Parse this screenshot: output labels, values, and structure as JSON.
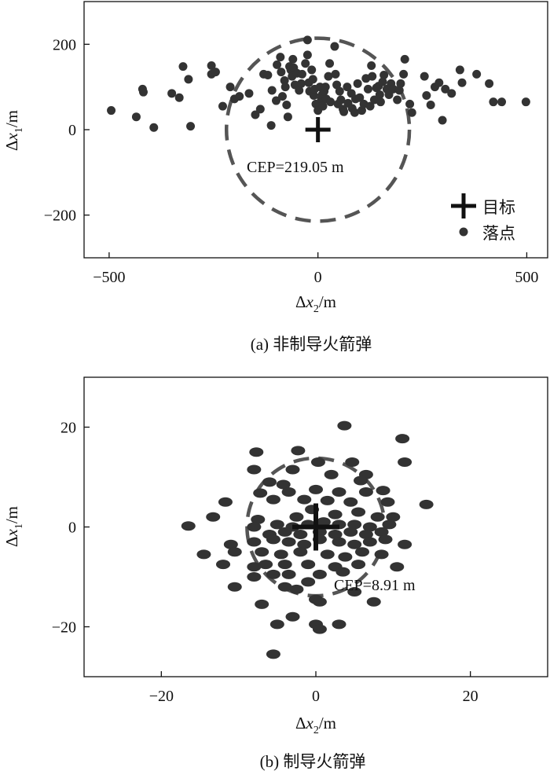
{
  "chart_data": [
    {
      "type": "scatter",
      "caption": "(a) 非制导火箭弹",
      "xlim": [
        -560,
        550
      ],
      "ylim": [
        -300,
        300
      ],
      "xticks": [
        -500,
        0,
        500
      ],
      "xtick_labels": [
        "−500",
        "0",
        "500"
      ],
      "yticks": [
        -200,
        0,
        200
      ],
      "ytick_labels": [
        "−200",
        "0",
        "200"
      ],
      "xlabel": {
        "delta": "Δ",
        "var": "x",
        "sub": "2",
        "unit": "/m"
      },
      "ylabel": {
        "delta": "Δ",
        "var": "x",
        "sub": "1",
        "unit": "/m"
      },
      "cep_label": "CEP=219.05 m",
      "cep_radius": 219.05,
      "target": [
        0,
        0
      ],
      "legend": {
        "position": "bottom-right",
        "target": "目标",
        "points": "落点"
      },
      "grid": false,
      "points": [
        [
          -495,
          45
        ],
        [
          -435,
          30
        ],
        [
          -420,
          95
        ],
        [
          -418,
          88
        ],
        [
          -393,
          5
        ],
        [
          -350,
          85
        ],
        [
          -332,
          75
        ],
        [
          -323,
          148
        ],
        [
          -310,
          118
        ],
        [
          -305,
          8
        ],
        [
          -255,
          150
        ],
        [
          -255,
          130
        ],
        [
          -245,
          135
        ],
        [
          -228,
          55
        ],
        [
          -210,
          100
        ],
        [
          -200,
          72
        ],
        [
          -188,
          78
        ],
        [
          -165,
          85
        ],
        [
          -150,
          35
        ],
        [
          -138,
          48
        ],
        [
          -130,
          130
        ],
        [
          -120,
          128
        ],
        [
          -112,
          10
        ],
        [
          -110,
          92
        ],
        [
          -100,
          68
        ],
        [
          -98,
          152
        ],
        [
          -90,
          170
        ],
        [
          -88,
          135
        ],
        [
          -85,
          78
        ],
        [
          -80,
          115
        ],
        [
          -78,
          100
        ],
        [
          -75,
          58
        ],
        [
          -72,
          30
        ],
        [
          -68,
          148
        ],
        [
          -65,
          140
        ],
        [
          -62,
          125
        ],
        [
          -60,
          165
        ],
        [
          -58,
          145
        ],
        [
          -55,
          105
        ],
        [
          -50,
          132
        ],
        [
          -45,
          92
        ],
        [
          -40,
          108
        ],
        [
          -38,
          130
        ],
        [
          -30,
          155
        ],
        [
          -25,
          175
        ],
        [
          -22,
          110
        ],
        [
          -20,
          90
        ],
        [
          -15,
          140
        ],
        [
          -12,
          118
        ],
        [
          -10,
          80
        ],
        [
          -8,
          95
        ],
        [
          -25,
          210
        ],
        [
          -5,
          60
        ],
        [
          0,
          45
        ],
        [
          5,
          100
        ],
        [
          8,
          72
        ],
        [
          10,
          82
        ],
        [
          12,
          55
        ],
        [
          15,
          90
        ],
        [
          18,
          100
        ],
        [
          20,
          72
        ],
        [
          25,
          125
        ],
        [
          28,
          155
        ],
        [
          30,
          65
        ],
        [
          40,
          195
        ],
        [
          42,
          130
        ],
        [
          45,
          105
        ],
        [
          48,
          60
        ],
        [
          52,
          90
        ],
        [
          55,
          70
        ],
        [
          60,
          48
        ],
        [
          62,
          42
        ],
        [
          70,
          100
        ],
        [
          72,
          62
        ],
        [
          80,
          85
        ],
        [
          82,
          50
        ],
        [
          88,
          40
        ],
        [
          90,
          72
        ],
        [
          95,
          108
        ],
        [
          100,
          75
        ],
        [
          105,
          45
        ],
        [
          110,
          60
        ],
        [
          115,
          120
        ],
        [
          120,
          95
        ],
        [
          125,
          55
        ],
        [
          128,
          150
        ],
        [
          130,
          125
        ],
        [
          135,
          70
        ],
        [
          140,
          98
        ],
        [
          145,
          102
        ],
        [
          148,
          82
        ],
        [
          150,
          65
        ],
        [
          155,
          112
        ],
        [
          158,
          128
        ],
        [
          165,
          95
        ],
        [
          170,
          82
        ],
        [
          175,
          108
        ],
        [
          180,
          95
        ],
        [
          190,
          70
        ],
        [
          195,
          92
        ],
        [
          198,
          108
        ],
        [
          205,
          130
        ],
        [
          208,
          165
        ],
        [
          220,
          60
        ],
        [
          225,
          40
        ],
        [
          255,
          125
        ],
        [
          260,
          80
        ],
        [
          270,
          58
        ],
        [
          280,
          100
        ],
        [
          290,
          110
        ],
        [
          298,
          22
        ],
        [
          305,
          95
        ],
        [
          320,
          85
        ],
        [
          340,
          140
        ],
        [
          345,
          110
        ],
        [
          380,
          130
        ],
        [
          410,
          108
        ],
        [
          420,
          65
        ],
        [
          440,
          65
        ],
        [
          498,
          65
        ]
      ]
    },
    {
      "type": "scatter",
      "caption": "(b) 制导火箭弹",
      "xlim": [
        -30,
        30
      ],
      "ylim": [
        -30,
        30
      ],
      "xticks": [
        -20,
        0,
        20
      ],
      "xtick_labels": [
        "−20",
        "0",
        "20"
      ],
      "yticks": [
        -20,
        0,
        20
      ],
      "ytick_labels": [
        "−20",
        "0",
        "20"
      ],
      "xlabel": {
        "delta": "Δ",
        "var": "x",
        "sub": "2",
        "unit": "/m"
      },
      "ylabel": {
        "delta": "Δ",
        "var": "x",
        "sub": "1",
        "unit": "/m"
      },
      "cep_label": "CEP=8.91 m",
      "cep_radius": 8.91,
      "target": [
        0,
        0
      ],
      "grid": false,
      "points": [
        [
          3.7,
          20.3
        ],
        [
          11.2,
          17.7
        ],
        [
          -2.3,
          15.3
        ],
        [
          -7.7,
          15.0
        ],
        [
          0.3,
          13.0
        ],
        [
          4.7,
          13.0
        ],
        [
          11.5,
          13.0
        ],
        [
          -8.0,
          11.5
        ],
        [
          -3.0,
          11.5
        ],
        [
          2.0,
          10.5
        ],
        [
          6.5,
          10.5
        ],
        [
          -6.0,
          9.0
        ],
        [
          -4.2,
          8.5
        ],
        [
          5.8,
          9.3
        ],
        [
          -7.2,
          6.8
        ],
        [
          -3.5,
          7.0
        ],
        [
          0.0,
          7.5
        ],
        [
          3.0,
          7.0
        ],
        [
          6.5,
          7.0
        ],
        [
          8.7,
          7.3
        ],
        [
          -11.7,
          5.0
        ],
        [
          -5.5,
          5.5
        ],
        [
          -1.5,
          5.5
        ],
        [
          1.5,
          5.3
        ],
        [
          4.5,
          5.0
        ],
        [
          9.3,
          5.0
        ],
        [
          14.3,
          4.5
        ],
        [
          -13.3,
          2.0
        ],
        [
          -7.5,
          1.5
        ],
        [
          -2.5,
          2.0
        ],
        [
          -0.5,
          3.5
        ],
        [
          2.5,
          2.5
        ],
        [
          5.5,
          3.0
        ],
        [
          8.0,
          2.0
        ],
        [
          10.0,
          2.0
        ],
        [
          -16.5,
          0.2
        ],
        [
          -8.0,
          0.0
        ],
        [
          -5.0,
          0.5
        ],
        [
          -3.0,
          0.0
        ],
        [
          -1.0,
          0.5
        ],
        [
          1.0,
          1.0
        ],
        [
          3.0,
          0.5
        ],
        [
          5.0,
          0.5
        ],
        [
          7.0,
          0.0
        ],
        [
          9.5,
          0.5
        ],
        [
          -6.0,
          -1.5
        ],
        [
          -4.0,
          -1.0
        ],
        [
          -2.0,
          -1.5
        ],
        [
          0.5,
          -1.0
        ],
        [
          2.5,
          -1.5
        ],
        [
          4.5,
          -1.0
        ],
        [
          6.5,
          -1.5
        ],
        [
          8.5,
          -1.0
        ],
        [
          -11.0,
          -3.5
        ],
        [
          -8.0,
          -3.0
        ],
        [
          -5.5,
          -2.5
        ],
        [
          -3.5,
          -3.0
        ],
        [
          -1.5,
          -3.5
        ],
        [
          0.5,
          -2.5
        ],
        [
          3.0,
          -3.0
        ],
        [
          5.0,
          -3.5
        ],
        [
          7.0,
          -3.0
        ],
        [
          9.0,
          -2.5
        ],
        [
          11.5,
          -3.5
        ],
        [
          -14.5,
          -5.5
        ],
        [
          -10.5,
          -5.0
        ],
        [
          -7.0,
          -5.0
        ],
        [
          -4.5,
          -5.5
        ],
        [
          -2.0,
          -5.0
        ],
        [
          1.5,
          -5.5
        ],
        [
          3.8,
          -6.0
        ],
        [
          6.0,
          -5.0
        ],
        [
          8.5,
          -5.5
        ],
        [
          -12.0,
          -7.5
        ],
        [
          -8.0,
          -8.0
        ],
        [
          -6.5,
          -7.5
        ],
        [
          -4.0,
          -7.5
        ],
        [
          -1.0,
          -7.5
        ],
        [
          2.5,
          -8.0
        ],
        [
          5.5,
          -7.5
        ],
        [
          10.5,
          -8.0
        ],
        [
          -5.5,
          -9.5
        ],
        [
          -3.5,
          -9.5
        ],
        [
          0.5,
          -9.5
        ],
        [
          3.5,
          -9.0
        ],
        [
          -8.0,
          -10.0
        ],
        [
          -10.5,
          -12.0
        ],
        [
          -4.0,
          -12.0
        ],
        [
          -1.0,
          -11.0
        ],
        [
          -2.5,
          -12.5
        ],
        [
          0.0,
          -14.5
        ],
        [
          5.0,
          -13.0
        ],
        [
          7.5,
          -15.0
        ],
        [
          -7.0,
          -15.5
        ],
        [
          0.5,
          -15.0
        ],
        [
          -3.0,
          -18.0
        ],
        [
          -5.0,
          -19.5
        ],
        [
          0.0,
          -19.5
        ],
        [
          3.0,
          -19.5
        ],
        [
          0.5,
          -20.5
        ],
        [
          -5.5,
          -25.5
        ]
      ]
    }
  ]
}
